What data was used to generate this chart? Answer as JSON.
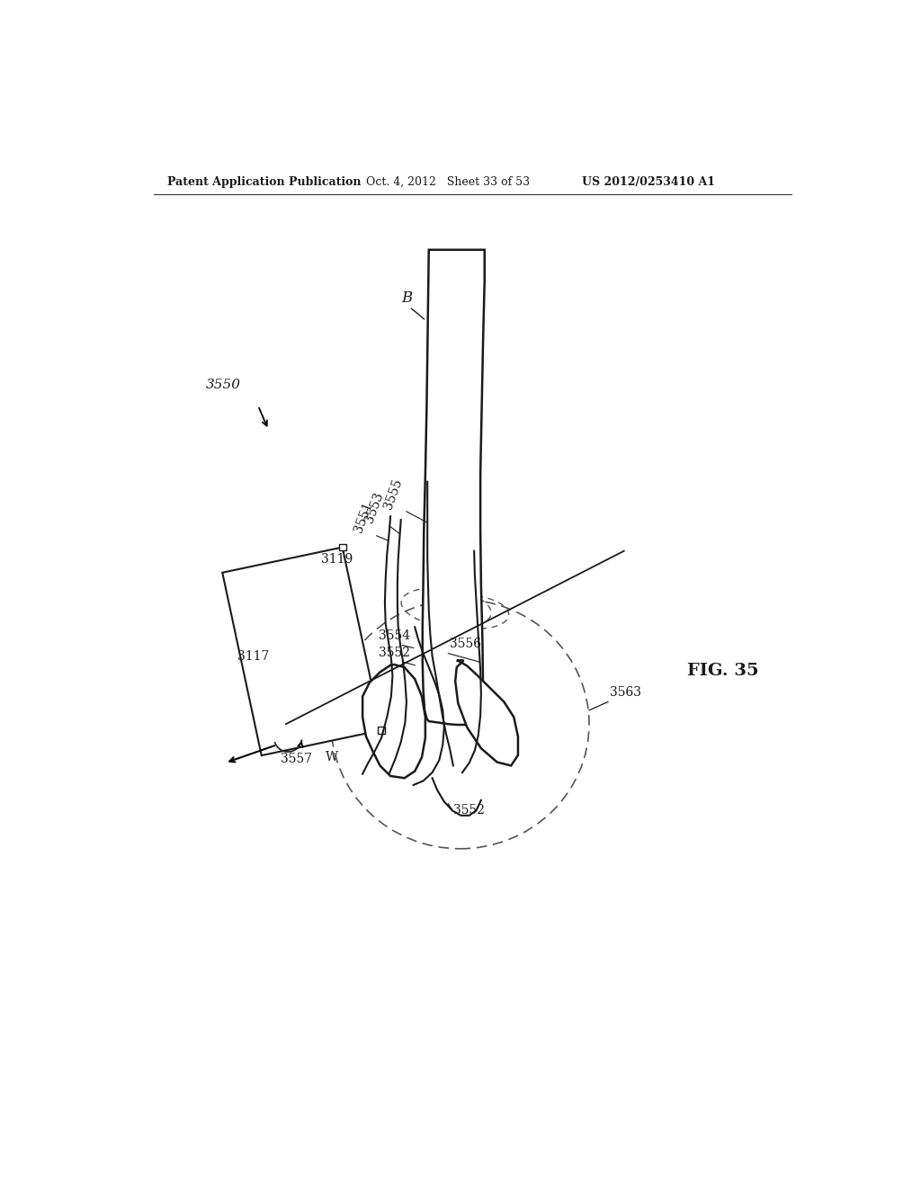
{
  "background_color": "#ffffff",
  "header_left": "Patent Application Publication",
  "header_mid": "Oct. 4, 2012   Sheet 33 of 53",
  "header_right": "US 2012/0253410 A1",
  "fig_label": "FIG. 35",
  "label_3550": "3550",
  "label_B": "B",
  "label_3119": "3119",
  "label_3117": "3117",
  "label_3551": "3551",
  "label_3553": "3553",
  "label_3555": "3555",
  "label_3554": "3554",
  "label_3552a": "3552",
  "label_3552b": "3552",
  "label_3552c": "3552",
  "label_3556": "3556",
  "label_3557": "3557",
  "label_W": "W",
  "label_3563": "3563"
}
